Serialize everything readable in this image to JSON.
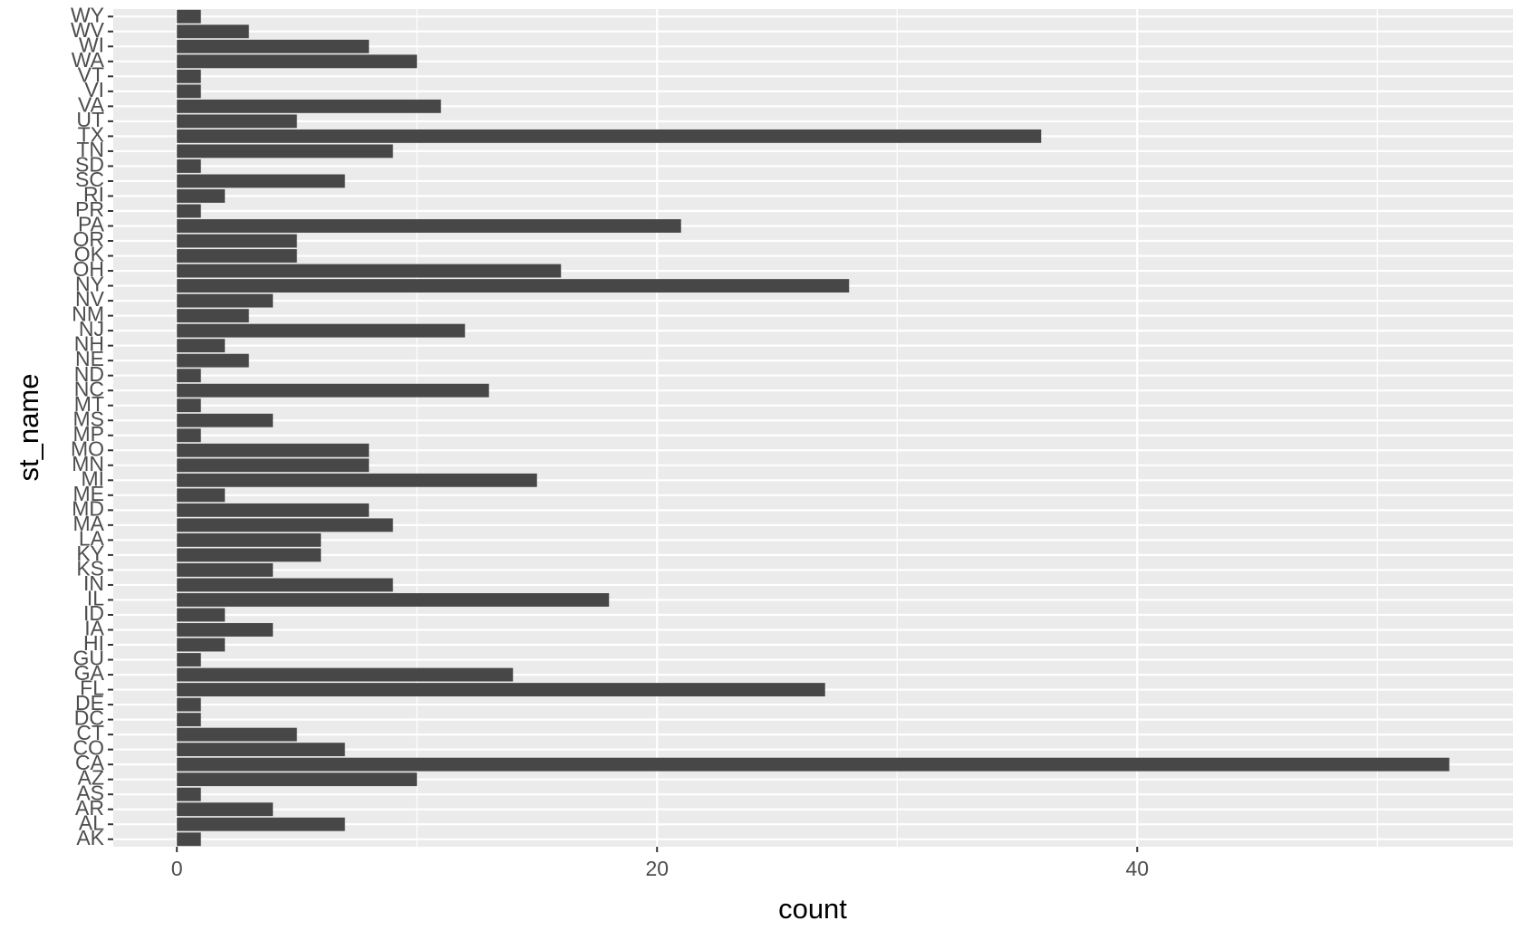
{
  "chart_data": {
    "type": "hbar",
    "x_label": "count",
    "y_label": "st_name",
    "categories": [
      "AK",
      "AL",
      "AR",
      "AS",
      "AZ",
      "CA",
      "CO",
      "CT",
      "DC",
      "DE",
      "FL",
      "GA",
      "GU",
      "HI",
      "IA",
      "ID",
      "IL",
      "IN",
      "KS",
      "KY",
      "LA",
      "MA",
      "MD",
      "ME",
      "MI",
      "MN",
      "MO",
      "MP",
      "MS",
      "MT",
      "NC",
      "ND",
      "NE",
      "NH",
      "NJ",
      "NM",
      "NV",
      "NY",
      "OH",
      "OK",
      "OR",
      "PA",
      "PR",
      "RI",
      "SC",
      "SD",
      "TN",
      "TX",
      "UT",
      "VA",
      "VI",
      "VT",
      "WA",
      "WI",
      "WV",
      "WY"
    ],
    "values": [
      1,
      7,
      4,
      1,
      10,
      53,
      7,
      5,
      1,
      1,
      27,
      14,
      1,
      2,
      4,
      2,
      18,
      9,
      4,
      6,
      6,
      9,
      8,
      2,
      15,
      8,
      8,
      1,
      4,
      1,
      13,
      1,
      3,
      2,
      12,
      3,
      4,
      28,
      16,
      5,
      5,
      21,
      1,
      2,
      7,
      1,
      9,
      36,
      5,
      11,
      1,
      1,
      10,
      8,
      3,
      1
    ],
    "color": "#474747",
    "xlim": [
      -2.65,
      55.65
    ],
    "xticks": [
      0,
      20,
      40
    ],
    "minor_xticks": [
      10,
      30,
      50
    ],
    "grid": true
  }
}
